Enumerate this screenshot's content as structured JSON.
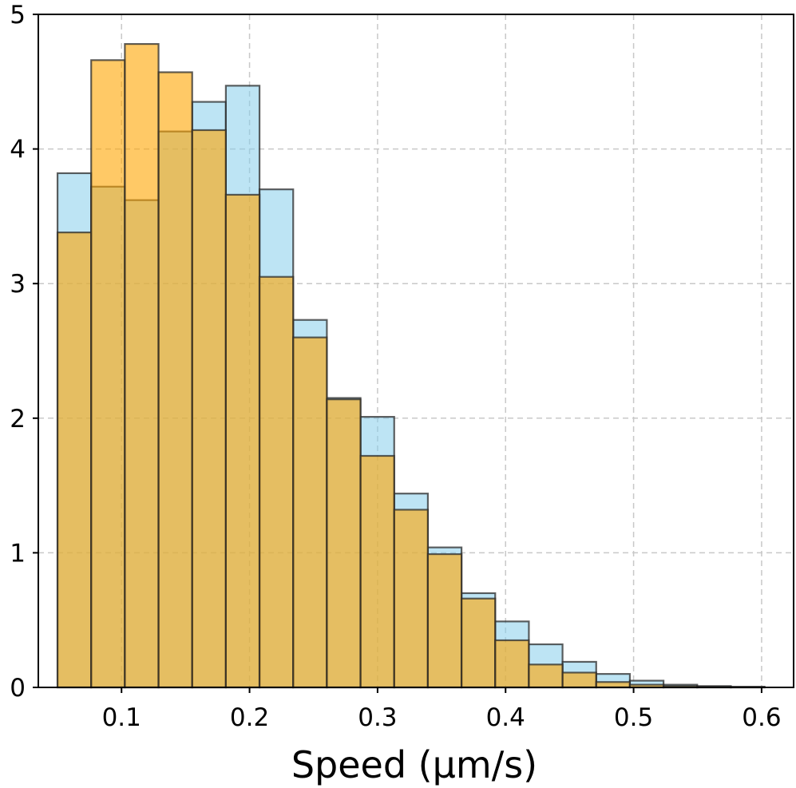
{
  "chart_data": {
    "type": "bar",
    "xlabel": "Speed (μm/s)",
    "ylabel": "",
    "xlim": [
      0.035,
      0.625
    ],
    "ylim": [
      0,
      5
    ],
    "xticks": [
      0.1,
      0.2,
      0.3,
      0.4,
      0.5,
      0.6
    ],
    "xtick_labels": [
      "0.1",
      "0.2",
      "0.3",
      "0.4",
      "0.5",
      "0.6"
    ],
    "yticks": [
      0,
      1,
      2,
      3,
      4,
      5
    ],
    "ytick_labels": [
      "0",
      "1",
      "2",
      "3",
      "4",
      "5"
    ],
    "grid": true,
    "series": [
      {
        "color": "#87CEEB",
        "opacity": 0.55,
        "bin_edges": [
          0.05,
          0.0763,
          0.1026,
          0.1289,
          0.1552,
          0.1815,
          0.2078,
          0.2341,
          0.2604,
          0.2867,
          0.313,
          0.3393,
          0.3656,
          0.3919,
          0.4182,
          0.4445,
          0.4708,
          0.4971,
          0.5234,
          0.5497,
          0.576,
          0.6023
        ],
        "values": [
          3.82,
          3.72,
          3.62,
          4.13,
          4.35,
          4.47,
          3.7,
          2.73,
          2.15,
          2.01,
          1.44,
          1.04,
          0.7,
          0.49,
          0.32,
          0.19,
          0.1,
          0.05,
          0.02,
          0.01,
          0.005
        ]
      },
      {
        "color": "#FFA500",
        "opacity": 0.6,
        "bin_edges": [
          0.05,
          0.0763,
          0.1026,
          0.1289,
          0.1552,
          0.1815,
          0.2078,
          0.2341,
          0.2604,
          0.2867,
          0.313,
          0.3393,
          0.3656,
          0.3919,
          0.4182,
          0.4445,
          0.4708,
          0.4971,
          0.5234,
          0.5497,
          0.576,
          0.6023
        ],
        "values": [
          3.38,
          4.66,
          4.78,
          4.57,
          4.14,
          3.66,
          3.05,
          2.6,
          2.14,
          1.72,
          1.32,
          0.99,
          0.66,
          0.35,
          0.17,
          0.11,
          0.04,
          0.02,
          0.01,
          0.005,
          0.002
        ]
      }
    ]
  }
}
